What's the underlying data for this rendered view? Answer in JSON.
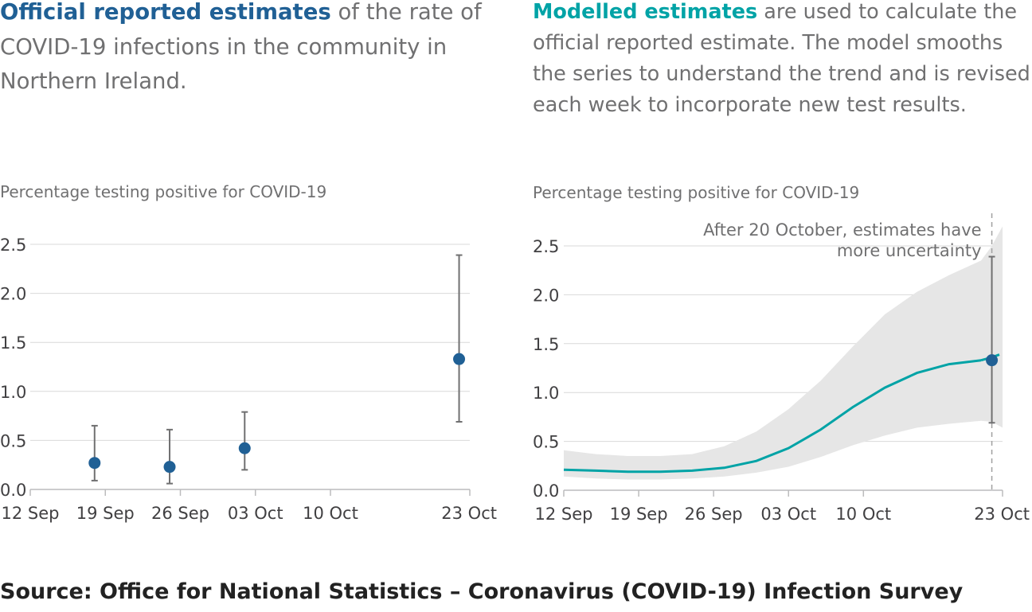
{
  "left": {
    "bold": "Official reported estimates",
    "rest": " of the rate of COVID-19 infections in the community in Northern Ireland."
  },
  "right": {
    "bold": "Modelled estimates",
    "rest": " are used to calculate the official reported estimate. The model smooths the series to understand the trend and is revised each week to incorporate new test results."
  },
  "source": "Source: Office for National Statistics – Coronavirus (COVID-19) Infection Survey",
  "colors": {
    "official": "#206095",
    "modelled": "#00a3a6",
    "band": "#e6e6e6",
    "error_bar": "#707071"
  },
  "chart_data": [
    {
      "type": "scatter",
      "ylabel": "Percentage testing positive for COVID-19",
      "ylim": [
        0,
        2.5
      ],
      "y_ticks": [
        "0.0",
        "0.5",
        "1.0",
        "1.5",
        "2.0",
        "2.5"
      ],
      "x_domain": [
        "12 Sep",
        "23 Oct"
      ],
      "x_ticks": [
        "12 Sep",
        "19 Sep",
        "26 Sep",
        "03 Oct",
        "10 Oct",
        "23 Oct"
      ],
      "grid": true,
      "series": [
        {
          "points": [
            {
              "x": "18 Sep",
              "y": 0.27,
              "lower": 0.09,
              "upper": 0.65
            },
            {
              "x": "25 Sep",
              "y": 0.23,
              "lower": 0.06,
              "upper": 0.61
            },
            {
              "x": "02 Oct",
              "y": 0.42,
              "lower": 0.2,
              "upper": 0.79
            },
            {
              "x": "22 Oct",
              "y": 1.33,
              "lower": 0.69,
              "upper": 2.39
            }
          ]
        }
      ]
    },
    {
      "type": "line",
      "ylabel": "Percentage testing positive for COVID-19",
      "ylim": [
        0,
        2.5
      ],
      "y_ticks": [
        "0.0",
        "0.5",
        "1.0",
        "1.5",
        "2.0",
        "2.5"
      ],
      "x_domain": [
        "12 Sep",
        "23 Oct"
      ],
      "x_ticks": [
        "12 Sep",
        "19 Sep",
        "26 Sep",
        "03 Oct",
        "10 Oct",
        "23 Oct"
      ],
      "grid": true,
      "annotation": "After 20 October, estimates have more uncertainty",
      "annotation_x": "22 Oct",
      "series": [
        {
          "x": [
            "12 Sep",
            "15 Sep",
            "18 Sep",
            "21 Sep",
            "24 Sep",
            "27 Sep",
            "30 Sep",
            "03 Oct",
            "06 Oct",
            "09 Oct",
            "12 Oct",
            "15 Oct",
            "18 Oct",
            "21 Oct",
            "22 Oct",
            "23 Oct"
          ],
          "y": [
            0.21,
            0.2,
            0.19,
            0.19,
            0.2,
            0.23,
            0.3,
            0.43,
            0.62,
            0.85,
            1.05,
            1.2,
            1.29,
            1.33,
            1.36,
            1.4
          ],
          "lower": [
            0.14,
            0.12,
            0.11,
            0.11,
            0.12,
            0.14,
            0.18,
            0.24,
            0.34,
            0.46,
            0.56,
            0.64,
            0.68,
            0.71,
            0.7,
            0.64
          ],
          "upper": [
            0.41,
            0.37,
            0.35,
            0.35,
            0.37,
            0.45,
            0.6,
            0.83,
            1.12,
            1.47,
            1.8,
            2.03,
            2.2,
            2.35,
            2.5,
            2.7
          ],
          "dashed_from": "21 Oct"
        },
        {
          "points": [
            {
              "x": "22 Oct",
              "y": 1.33,
              "lower": 0.69,
              "upper": 2.39
            }
          ]
        }
      ]
    }
  ]
}
